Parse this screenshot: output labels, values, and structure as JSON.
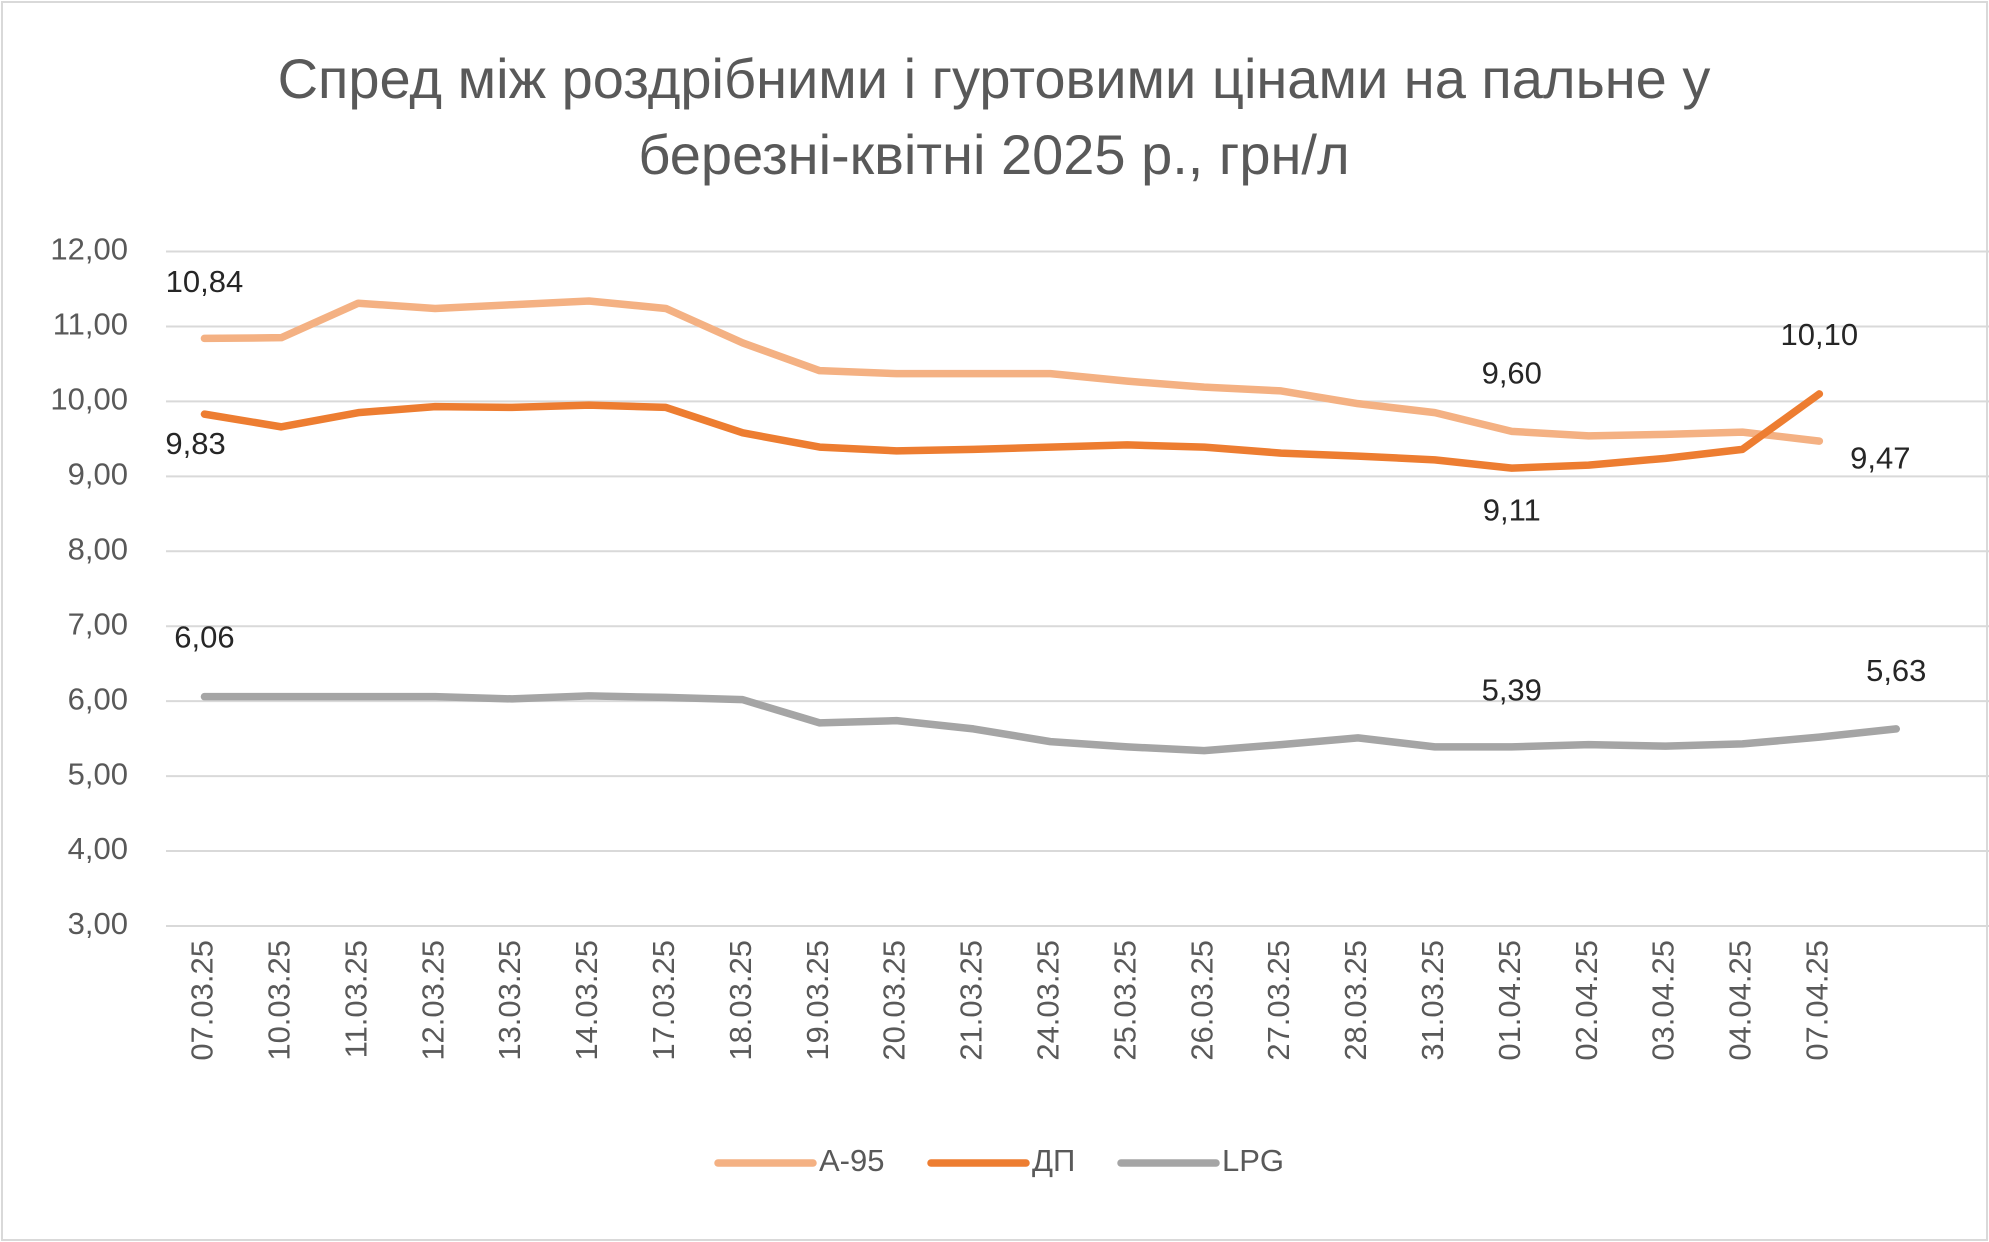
{
  "chart_data": {
    "type": "line",
    "title": [
      "Спред між роздрібними і гуртовими цінами на пальне у",
      "березні-квітні 2025 р., грн/л"
    ],
    "categories": [
      "07.03.25",
      "10.03.25",
      "11.03.25",
      "12.03.25",
      "13.03.25",
      "14.03.25",
      "17.03.25",
      "18.03.25",
      "19.03.25",
      "20.03.25",
      "21.03.25",
      "24.03.25",
      "25.03.25",
      "26.03.25",
      "27.03.25",
      "28.03.25",
      "31.03.25",
      "01.04.25",
      "02.04.25",
      "03.04.25",
      "04.04.25",
      "07.04.25",
      null
    ],
    "series": [
      {
        "name": "А-95",
        "color": "#f4b183",
        "values": [
          10.84,
          10.85,
          11.31,
          11.24,
          11.29,
          11.34,
          11.24,
          10.78,
          10.41,
          10.37,
          10.37,
          10.37,
          10.27,
          10.19,
          10.14,
          9.97,
          9.85,
          9.6,
          9.54,
          9.56,
          9.59,
          9.47,
          null
        ],
        "value_labels": [
          "10,84",
          null,
          null,
          null,
          null,
          null,
          null,
          null,
          null,
          null,
          null,
          null,
          null,
          null,
          null,
          null,
          null,
          "9,60",
          null,
          null,
          null,
          "9,47",
          null
        ]
      },
      {
        "name": "ДП",
        "color": "#ed7d31",
        "values": [
          9.83,
          9.66,
          9.85,
          9.93,
          9.92,
          9.95,
          9.92,
          9.58,
          9.39,
          9.34,
          9.36,
          9.39,
          9.42,
          9.39,
          9.31,
          9.27,
          9.22,
          9.11,
          9.15,
          9.24,
          9.36,
          10.1,
          null
        ],
        "value_labels": [
          "9,83",
          null,
          null,
          null,
          null,
          null,
          null,
          null,
          null,
          null,
          null,
          null,
          null,
          null,
          null,
          null,
          null,
          "9,11",
          null,
          null,
          null,
          "10,10",
          null
        ]
      },
      {
        "name": "LPG",
        "color": "#a5a5a5",
        "values": [
          6.06,
          6.06,
          6.06,
          6.06,
          6.03,
          6.07,
          6.05,
          6.02,
          5.71,
          5.74,
          5.63,
          5.46,
          5.39,
          5.34,
          5.42,
          5.51,
          5.39,
          5.39,
          5.42,
          5.4,
          5.43,
          5.52,
          5.63
        ],
        "value_labels": [
          "6,06",
          null,
          null,
          null,
          null,
          null,
          null,
          null,
          null,
          null,
          null,
          null,
          null,
          null,
          null,
          null,
          null,
          "5,39",
          null,
          null,
          null,
          null,
          "5,63"
        ]
      }
    ],
    "ylim": [
      3,
      12
    ],
    "yticks": [
      {
        "value": 3,
        "label": "3,00"
      },
      {
        "value": 4,
        "label": "4,00"
      },
      {
        "value": 5,
        "label": "5,00"
      },
      {
        "value": 6,
        "label": "6,00"
      },
      {
        "value": 7,
        "label": "7,00"
      },
      {
        "value": 8,
        "label": "8,00"
      },
      {
        "value": 9,
        "label": "9,00"
      },
      {
        "value": 10,
        "label": "10,00"
      },
      {
        "value": 11,
        "label": "11,00"
      },
      {
        "value": 12,
        "label": "12,00"
      }
    ],
    "grid": true,
    "legend": "bottom"
  }
}
